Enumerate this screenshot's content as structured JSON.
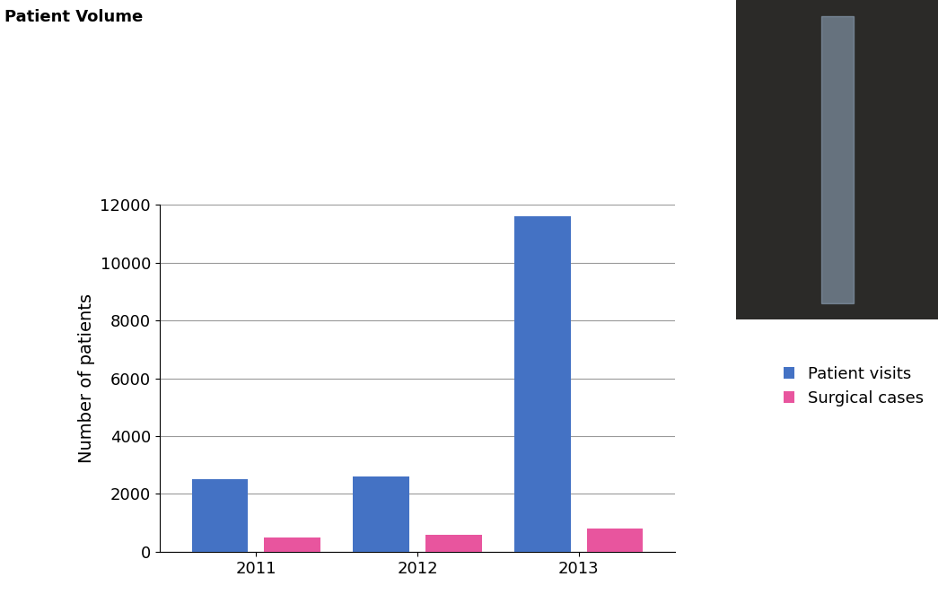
{
  "chart_data": {
    "type": "bar",
    "title": "Patient Volume",
    "y_label": "Number of patients",
    "categories": [
      "2011",
      "2012",
      "2013"
    ],
    "series": [
      {
        "name": "Patient visits",
        "color": "#4472c4",
        "values": [
          2500,
          2600,
          11600
        ]
      },
      {
        "name": "Surgical cases",
        "color": "#e8559e",
        "values": [
          500,
          600,
          800
        ]
      }
    ],
    "ylim": [
      0,
      12000
    ],
    "yticks": [
      0,
      2000,
      4000,
      6000,
      8000,
      10000,
      12000
    ],
    "grid": true,
    "legend": "right"
  }
}
